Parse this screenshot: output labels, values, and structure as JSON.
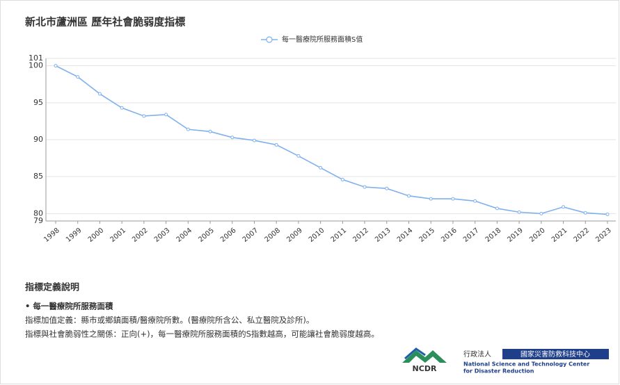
{
  "chart_data": {
    "type": "line",
    "title": "新北市蘆洲區 歷年社會脆弱度指標",
    "categories": [
      "1998",
      "1999",
      "2000",
      "2001",
      "2002",
      "2003",
      "2004",
      "2005",
      "2006",
      "2007",
      "2008",
      "2009",
      "2010",
      "2011",
      "2012",
      "2013",
      "2014",
      "2015",
      "2016",
      "2017",
      "2018",
      "2019",
      "2020",
      "2021",
      "2022",
      "2023"
    ],
    "series": [
      {
        "name": "每一醫療院所服務面積S值",
        "color": "#7fb0ee",
        "values": [
          100,
          98.5,
          96.2,
          94.3,
          93.2,
          93.4,
          91.4,
          91.1,
          90.3,
          89.9,
          89.3,
          87.8,
          86.2,
          84.6,
          83.6,
          83.4,
          82.4,
          82.0,
          82.0,
          81.7,
          80.7,
          80.2,
          80.0,
          80.9,
          80.1,
          79.9
        ]
      }
    ],
    "ylim": [
      79,
      101
    ],
    "yticks": [
      79,
      80,
      85,
      90,
      95,
      100,
      101
    ],
    "grid": true,
    "legend": "top"
  },
  "definition": {
    "heading": "指標定義說明",
    "item": "• 每一醫療院所服務面積",
    "lines": [
      "指標加值定義：縣市或鄉鎮面積/醫療院所數。(醫療院所含公、私立醫院及診所)。",
      "指標與社會脆弱性之關係：正向(+)，每一醫療院所服務面積的S指數越高，可能讓社會脆弱度越高。"
    ]
  },
  "logo": {
    "acronym": "NCDR",
    "org_type": "行政法人",
    "name_zh": "國家災害防救科技中心",
    "name_en_1": "National Science and Technology Center",
    "name_en_2": "for Disaster Reduction"
  }
}
